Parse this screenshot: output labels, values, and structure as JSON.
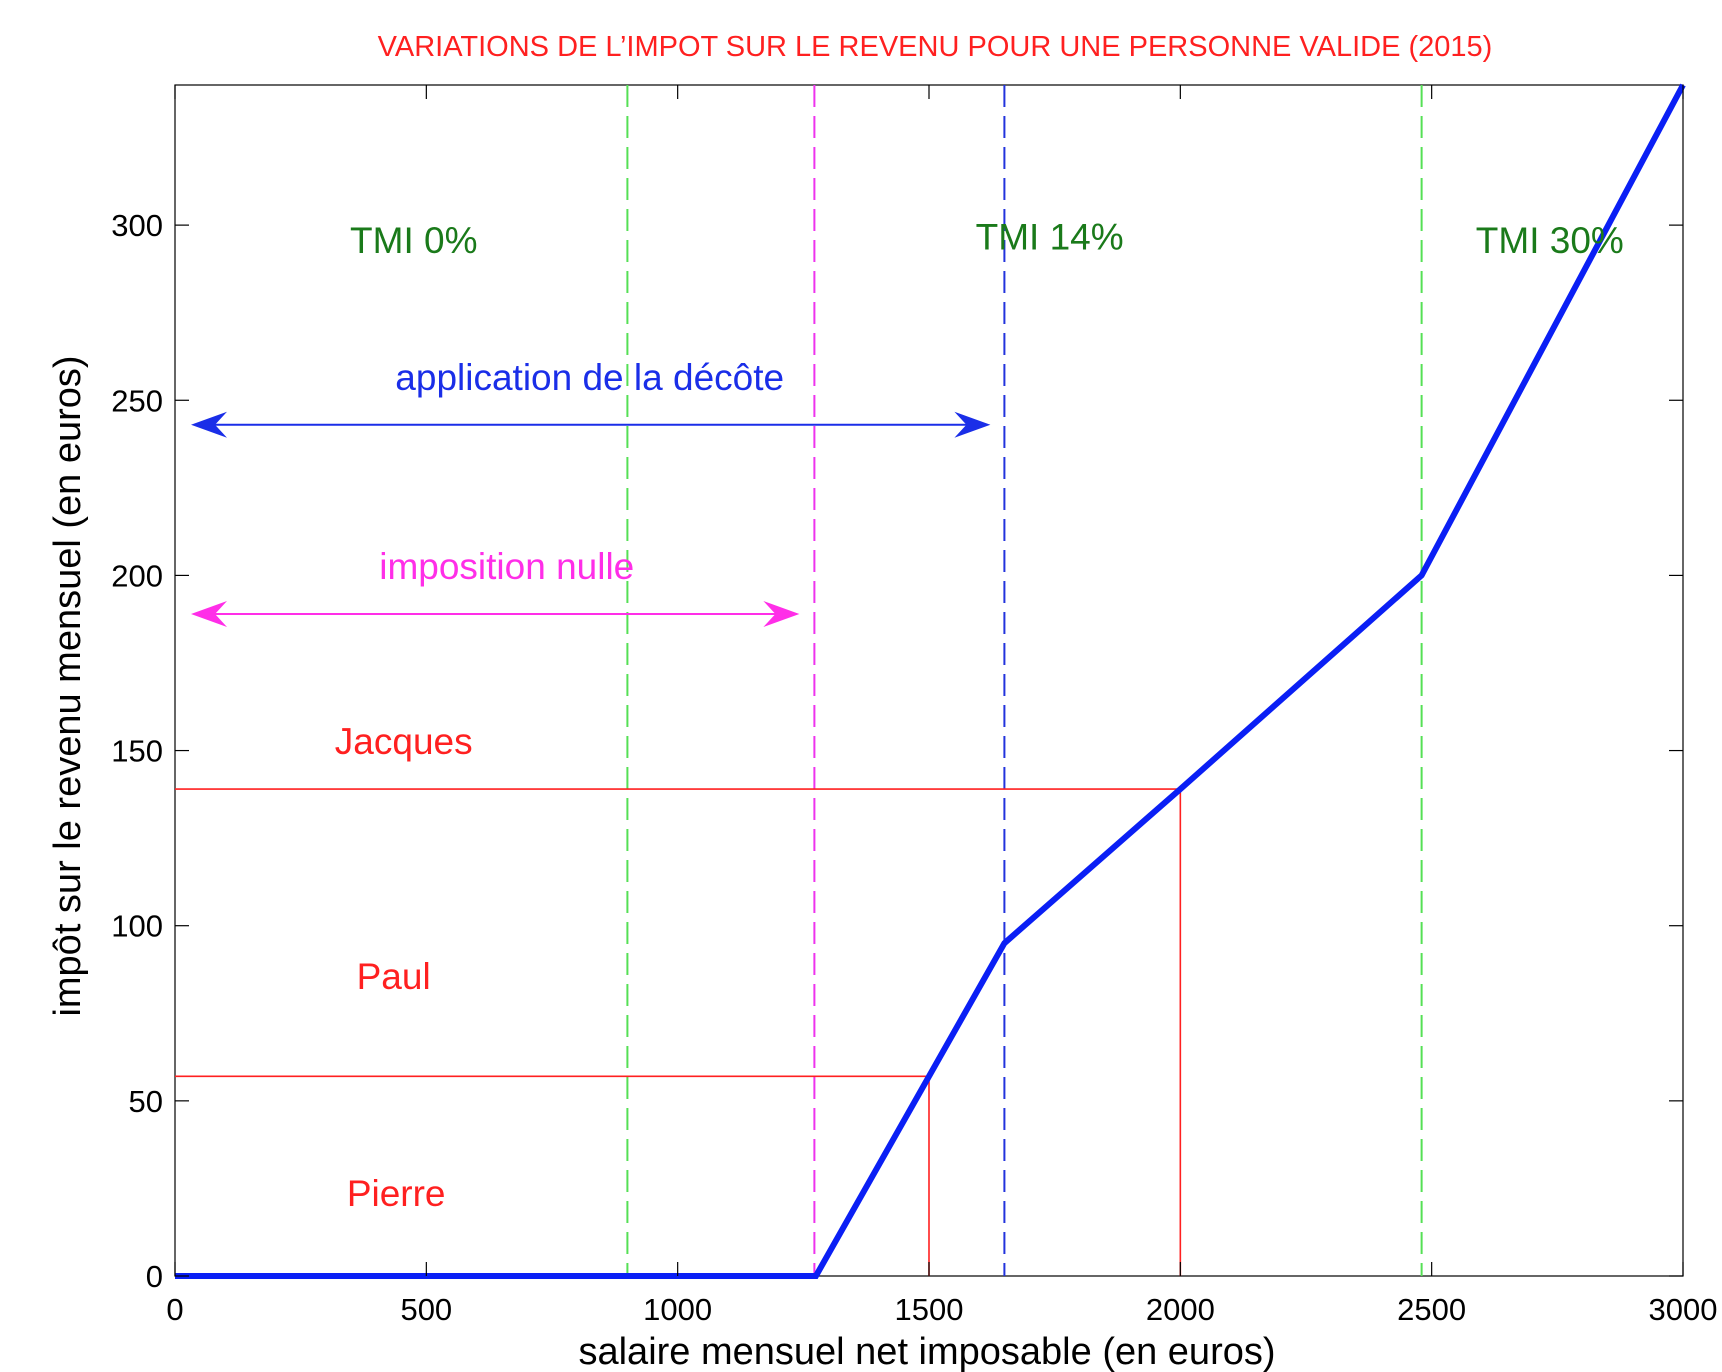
{
  "chart_data": {
    "type": "line",
    "title": "VARIATIONS DE L’IMPOT SUR LE REVENU POUR UNE PERSONNE VALIDE (2015)",
    "xlabel": "salaire mensuel net imposable (en euros)",
    "ylabel": "impôt sur le revenu mensuel (en euros)",
    "xlim": [
      0,
      3000
    ],
    "ylim": [
      0,
      340
    ],
    "x_ticks": [
      0,
      500,
      1000,
      1500,
      2000,
      2500,
      3000
    ],
    "y_ticks": [
      0,
      50,
      100,
      150,
      200,
      250,
      300
    ],
    "grid": false,
    "series": [
      {
        "color": "#0a1ff5",
        "x": [
          0,
          1275,
          1650,
          2000,
          2480,
          3000
        ],
        "y": [
          0,
          0,
          95,
          139,
          200,
          340
        ]
      }
    ],
    "vertical_lines": [
      {
        "x": 900,
        "color": "#55e055",
        "style": "dashed"
      },
      {
        "x": 1272,
        "color": "#ee33ee",
        "style": "dashed"
      },
      {
        "x": 1650,
        "color": "#2233dd",
        "style": "dashed"
      },
      {
        "x": 2480,
        "color": "#55e055",
        "style": "dashed"
      }
    ],
    "reference_lines": [
      {
        "x": 1500,
        "y": 57,
        "color": "#ff2020"
      },
      {
        "x": 2000,
        "y": 139,
        "color": "#ff2020"
      }
    ],
    "arrows": [
      {
        "x_from": 0,
        "x_to": 1650,
        "y": 243,
        "color": "#1a2ee8"
      },
      {
        "x_from": 0,
        "x_to": 1270,
        "y": 189,
        "color": "#ff2ee8"
      }
    ],
    "annotations": [
      {
        "text": "TMI 0%",
        "x": 475,
        "y": 292,
        "color": "#1a7a1a"
      },
      {
        "text": "TMI 14%",
        "x": 1740,
        "y": 293,
        "color": "#1a7a1a"
      },
      {
        "text": "TMI 30%",
        "x": 2735,
        "y": 292,
        "color": "#1a7a1a"
      },
      {
        "text": "application de la décôte",
        "x": 825,
        "y": 253,
        "color": "#1a2ee8"
      },
      {
        "text": "imposition nulle",
        "x": 660,
        "y": 199,
        "color": "#ff2ee8"
      },
      {
        "text": "Jacques",
        "x": 455,
        "y": 149,
        "color": "#ff2020"
      },
      {
        "text": "Paul",
        "x": 435,
        "y": 82,
        "color": "#ff2020"
      },
      {
        "text": "Pierre",
        "x": 440,
        "y": 20,
        "color": "#ff2020"
      }
    ]
  }
}
